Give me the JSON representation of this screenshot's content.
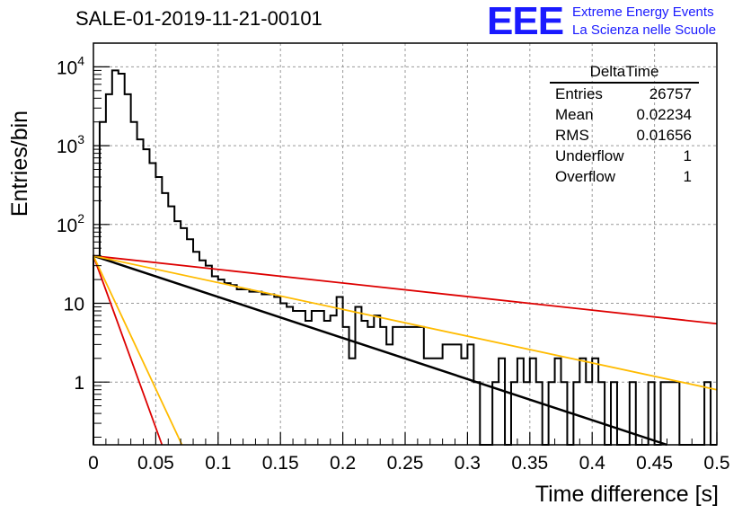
{
  "title": "SALE-01-2019-11-21-00101",
  "logo": {
    "mark": "EEE",
    "line1": "Extreme Energy Events",
    "line2": "La Scienza nelle Scuole",
    "color": "#1a1aff"
  },
  "stats": {
    "title": "DeltaTime",
    "rows": [
      {
        "label": "Entries",
        "value": "26757"
      },
      {
        "label": "Mean",
        "value": "0.02234"
      },
      {
        "label": "RMS",
        "value": "0.01656"
      },
      {
        "label": "Underflow",
        "value": "1"
      },
      {
        "label": "Overflow",
        "value": "1"
      }
    ]
  },
  "chart_data": {
    "type": "histogram",
    "xlabel": "Time difference [s]",
    "ylabel": "Entries/bin",
    "xlim": [
      0,
      0.5
    ],
    "ylim": [
      0.16,
      20000
    ],
    "yscale": "log",
    "grid": true,
    "x_ticks": [
      "0",
      "0.05",
      "0.1",
      "0.15",
      "0.2",
      "0.25",
      "0.3",
      "0.35",
      "0.4",
      "0.45",
      "0.5"
    ],
    "y_ticks": [
      {
        "value": 1,
        "label": "1"
      },
      {
        "value": 10,
        "label": "10"
      },
      {
        "value": 100,
        "label": "10",
        "exp": "2"
      },
      {
        "value": 1000,
        "label": "10",
        "exp": "3"
      },
      {
        "value": 10000,
        "label": "10",
        "exp": "4"
      }
    ],
    "bin_width": 0.005,
    "histogram_counts": [
      40,
      2000,
      4500,
      9000,
      8200,
      4500,
      2000,
      1200,
      900,
      600,
      400,
      250,
      170,
      110,
      90,
      65,
      45,
      35,
      30,
      22,
      20,
      18,
      17,
      15,
      15,
      14,
      14,
      13,
      13,
      12,
      10,
      9,
      8,
      8,
      6,
      8,
      8,
      6,
      7,
      12,
      5,
      2,
      9,
      6,
      5,
      7,
      5,
      3,
      5,
      5,
      5,
      5,
      5,
      2,
      2,
      2,
      3,
      3,
      3,
      2,
      3,
      1,
      0.1,
      0.1,
      1,
      2,
      0.1,
      1,
      2,
      1,
      2,
      1,
      0.1,
      1,
      2,
      1,
      0.1,
      1,
      2,
      1,
      2,
      1,
      0.1,
      1,
      0.1,
      0.1,
      1,
      0.1,
      0.1,
      1,
      0.1,
      1,
      1,
      1,
      0.1,
      0.1,
      0.1,
      0.1,
      1,
      0.1
    ],
    "lines": [
      {
        "color": "#000000",
        "width": 2.5,
        "points": [
          [
            0,
            40
          ],
          [
            0.46,
            0.16
          ]
        ]
      },
      {
        "color": "#dd0000",
        "width": 1.8,
        "points": [
          [
            0,
            40
          ],
          [
            0.5,
            5.5
          ]
        ]
      },
      {
        "color": "#ffbb00",
        "width": 1.8,
        "points": [
          [
            0,
            40
          ],
          [
            0.5,
            0.8
          ]
        ]
      },
      {
        "color": "#dd0000",
        "width": 1.8,
        "points": [
          [
            0,
            40
          ],
          [
            0.055,
            0.16
          ]
        ]
      },
      {
        "color": "#ffbb00",
        "width": 1.8,
        "points": [
          [
            0,
            40
          ],
          [
            0.071,
            0.16
          ]
        ]
      }
    ]
  }
}
